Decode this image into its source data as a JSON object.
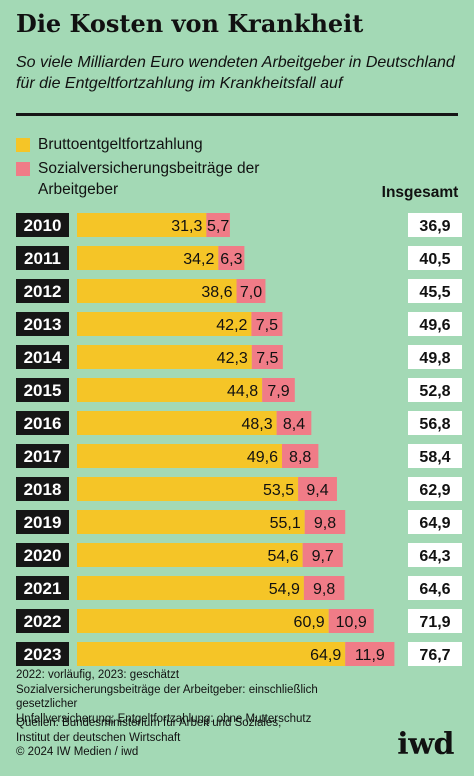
{
  "header": {
    "title": "Die Kosten von Krankheit",
    "subtitle": "So viele Milliarden Euro wendeten Arbeitgeber in Deutschland für die Entgeltfortzahlung im Krankheitsfall auf"
  },
  "legend": {
    "items": [
      {
        "label": "Bruttoentgeltfortzahlung",
        "color": "#f5c527"
      },
      {
        "label": "Sozialversicherungsbeiträge der Arbeitgeber",
        "color": "#f07c87"
      }
    ],
    "total_header": "Insgesamt"
  },
  "chart_data": {
    "type": "bar",
    "orientation": "horizontal",
    "stacked": true,
    "categories": [
      "2010",
      "2011",
      "2012",
      "2013",
      "2014",
      "2015",
      "2016",
      "2017",
      "2018",
      "2019",
      "2020",
      "2021",
      "2022",
      "2023"
    ],
    "series": [
      {
        "name": "Bruttoentgeltfortzahlung",
        "color": "#f5c527",
        "values": [
          31.3,
          34.2,
          38.6,
          42.2,
          42.3,
          44.8,
          48.3,
          49.6,
          53.5,
          55.1,
          54.6,
          54.9,
          60.9,
          64.9
        ],
        "labels": [
          "31,3",
          "34,2",
          "38,6",
          "42,2",
          "42,3",
          "44,8",
          "48,3",
          "49,6",
          "53,5",
          "55,1",
          "54,6",
          "54,9",
          "60,9",
          "64,9"
        ]
      },
      {
        "name": "Sozialversicherungsbeiträge der Arbeitgeber",
        "color": "#f07c87",
        "values": [
          5.7,
          6.3,
          7.0,
          7.5,
          7.5,
          7.9,
          8.4,
          8.8,
          9.4,
          9.8,
          9.7,
          9.8,
          10.9,
          11.9
        ],
        "labels": [
          "5,7",
          "6,3",
          "7,0",
          "7,5",
          "7,5",
          "7,9",
          "8,4",
          "8,8",
          "9,4",
          "9,8",
          "9,7",
          "9,8",
          "10,9",
          "11,9"
        ]
      }
    ],
    "totals": [
      36.9,
      40.5,
      45.5,
      49.6,
      49.8,
      52.8,
      56.8,
      58.4,
      62.9,
      64.9,
      64.3,
      64.6,
      71.9,
      76.7
    ],
    "total_labels": [
      "36,9",
      "40,5",
      "45,5",
      "49,6",
      "49,8",
      "52,8",
      "56,8",
      "58,4",
      "62,9",
      "64,9",
      "64,3",
      "64,6",
      "71,9",
      "76,7"
    ],
    "colors": {
      "category_box": "#161616",
      "category_text": "#ffffff",
      "total_box": "#ffffff"
    }
  },
  "footer": {
    "notes": [
      "2022: vorläufig, 2023: geschätzt",
      "Sozialversicherungsbeiträge der Arbeitgeber: einschließlich gesetzlicher",
      "Unfallversicherung; Entgeltfortzahlung: ohne Mutterschutz"
    ],
    "sources": [
      "Quellen: Bundesministerium für Arbeit und Soziales,",
      "Institut der deutschen Wirtschaft",
      "© 2024 IW Medien / iwd"
    ],
    "logo": "iwd"
  }
}
